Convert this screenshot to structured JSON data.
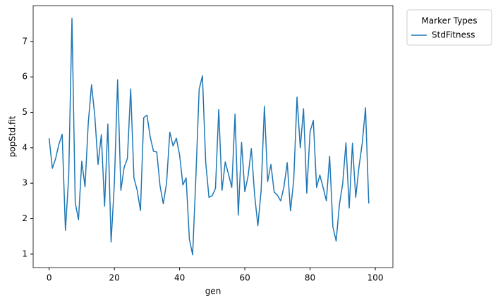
{
  "chart_data": {
    "type": "line",
    "xlabel": "gen",
    "ylabel": "popStd.fit",
    "x": [
      0,
      1,
      2,
      3,
      4,
      5,
      6,
      7,
      8,
      9,
      10,
      11,
      12,
      13,
      14,
      15,
      16,
      17,
      18,
      19,
      20,
      21,
      22,
      23,
      24,
      25,
      26,
      27,
      28,
      29,
      30,
      31,
      32,
      33,
      34,
      35,
      36,
      37,
      38,
      39,
      40,
      41,
      42,
      43,
      44,
      45,
      46,
      47,
      48,
      49,
      50,
      51,
      52,
      53,
      54,
      55,
      56,
      57,
      58,
      59,
      60,
      61,
      62,
      63,
      64,
      65,
      66,
      67,
      68,
      69,
      70,
      71,
      72,
      73,
      74,
      75,
      76,
      77,
      78,
      79,
      80,
      81,
      82,
      83,
      84,
      85,
      86,
      87,
      88,
      89,
      90,
      91,
      92,
      93,
      94,
      95,
      96,
      97,
      98
    ],
    "series": [
      {
        "name": "StdFitness",
        "color": "#1f77b4",
        "values": [
          4.27,
          3.42,
          3.7,
          4.1,
          4.38,
          1.67,
          3.2,
          7.65,
          2.45,
          1.97,
          3.62,
          2.9,
          4.7,
          5.78,
          4.9,
          3.53,
          4.37,
          2.35,
          4.67,
          1.34,
          3.0,
          5.92,
          2.8,
          3.45,
          3.7,
          5.66,
          3.15,
          2.8,
          2.23,
          4.85,
          4.92,
          4.3,
          3.9,
          3.88,
          2.93,
          2.42,
          3.0,
          4.44,
          4.05,
          4.27,
          3.8,
          2.95,
          3.15,
          1.42,
          0.98,
          3.2,
          5.65,
          6.03,
          3.6,
          2.6,
          2.65,
          2.85,
          5.08,
          2.8,
          3.6,
          3.25,
          2.88,
          4.95,
          2.1,
          4.15,
          2.76,
          3.2,
          3.98,
          2.67,
          1.8,
          2.8,
          5.17,
          3.05,
          3.53,
          2.75,
          2.66,
          2.5,
          2.9,
          3.58,
          2.22,
          3.1,
          5.43,
          4.0,
          5.1,
          2.72,
          4.45,
          4.77,
          2.88,
          3.23,
          2.88,
          2.5,
          3.76,
          1.77,
          1.37,
          2.4,
          2.98,
          4.14,
          2.3,
          4.13,
          2.6,
          3.46,
          4.13,
          5.13,
          2.43
        ]
      }
    ],
    "xlim": [
      -4.9,
      105.4
    ],
    "ylim": [
      0.62,
      8.01
    ],
    "xticks": [
      0,
      20,
      40,
      60,
      80,
      100
    ],
    "yticks": [
      1,
      2,
      3,
      4,
      5,
      6,
      7
    ],
    "legend_title": "Marker Types",
    "legend": "outside-right"
  }
}
